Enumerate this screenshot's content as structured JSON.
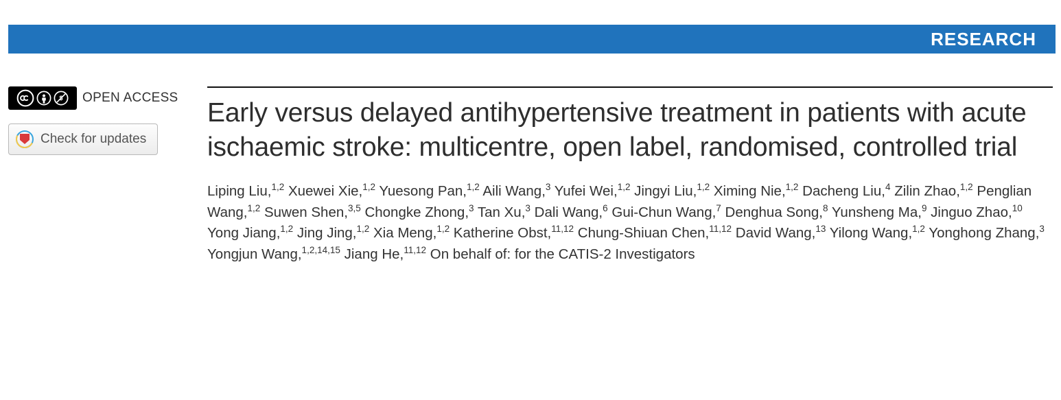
{
  "banner": {
    "label": "RESEARCH",
    "background_color": "#2073bc",
    "text_color": "#ffffff"
  },
  "sidebar": {
    "open_access_label": "OPEN ACCESS",
    "cc_alt": "CC BY-NC license",
    "check_updates_label": "Check for updates"
  },
  "article": {
    "title": "Early versus delayed antihypertensive treatment in patients with acute ischaemic stroke: multicentre, open label, randomised, controlled trial",
    "authors": [
      {
        "name": "Liping Liu",
        "aff": "1,2"
      },
      {
        "name": "Xuewei Xie",
        "aff": "1,2"
      },
      {
        "name": "Yuesong Pan",
        "aff": "1,2"
      },
      {
        "name": "Aili Wang",
        "aff": "3"
      },
      {
        "name": "Yufei Wei",
        "aff": "1,2"
      },
      {
        "name": "Jingyi Liu",
        "aff": "1,2"
      },
      {
        "name": "Ximing Nie",
        "aff": "1,2"
      },
      {
        "name": "Dacheng Liu",
        "aff": "4"
      },
      {
        "name": "Zilin Zhao",
        "aff": "1,2"
      },
      {
        "name": "Penglian Wang",
        "aff": "1,2"
      },
      {
        "name": "Suwen Shen",
        "aff": "3,5"
      },
      {
        "name": "Chongke Zhong",
        "aff": "3"
      },
      {
        "name": "Tan Xu",
        "aff": "3"
      },
      {
        "name": "Dali Wang",
        "aff": "6"
      },
      {
        "name": "Gui-Chun Wang",
        "aff": "7"
      },
      {
        "name": "Denghua Song",
        "aff": "8"
      },
      {
        "name": "Yunsheng Ma",
        "aff": "9"
      },
      {
        "name": "Jinguo Zhao",
        "aff": "10"
      },
      {
        "name": "Yong Jiang",
        "aff": "1,2"
      },
      {
        "name": "Jing Jing",
        "aff": "1,2"
      },
      {
        "name": "Xia Meng",
        "aff": "1,2"
      },
      {
        "name": "Katherine Obst",
        "aff": "11,12"
      },
      {
        "name": "Chung-Shiuan Chen",
        "aff": "11,12"
      },
      {
        "name": "David Wang",
        "aff": "13"
      },
      {
        "name": "Yilong Wang",
        "aff": "1,2"
      },
      {
        "name": "Yonghong Zhang",
        "aff": "3"
      },
      {
        "name": "Yongjun Wang",
        "aff": "1,2,14,15"
      },
      {
        "name": "Jiang He",
        "aff": "11,12"
      }
    ],
    "on_behalf": "On behalf of: for the CATIS-2 Investigators"
  },
  "colors": {
    "text": "#333333",
    "title": "#2e2e2e",
    "rule": "#111111"
  }
}
